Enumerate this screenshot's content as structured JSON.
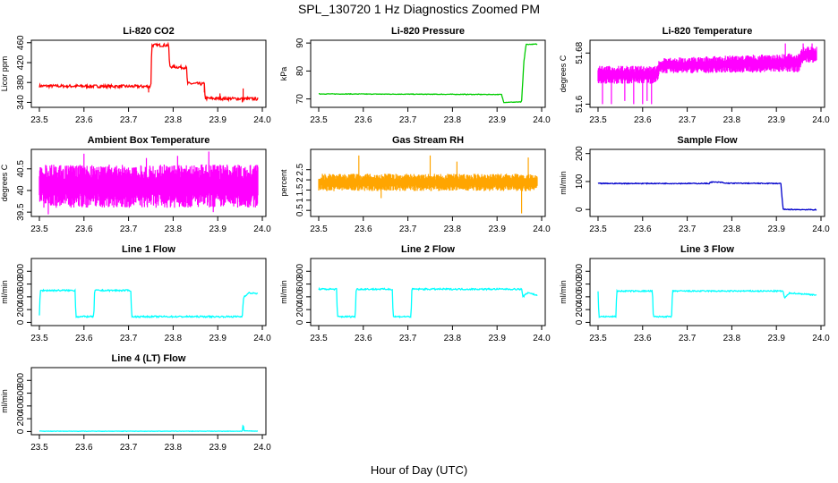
{
  "title": "SPL_130720  1 Hz Diagnostics Zoomed PM",
  "xlabel": "Hour of Day (UTC)",
  "chart_data": [
    {
      "type": "line",
      "title": "Li-820 CO2",
      "ylabel": "Licor ppm",
      "color": "#ff0000",
      "ylim": [
        330,
        465
      ],
      "yticks": [
        340,
        380,
        420,
        460
      ],
      "xlim": [
        23.49,
        24.0
      ],
      "xticks": [
        23.5,
        23.6,
        23.7,
        23.8,
        23.9,
        24.0
      ],
      "noise": 3,
      "points": [
        [
          23.5,
          373
        ],
        [
          23.75,
          372
        ],
        [
          23.752,
          455
        ],
        [
          23.79,
          455
        ],
        [
          23.792,
          412
        ],
        [
          23.83,
          410
        ],
        [
          23.832,
          378
        ],
        [
          23.87,
          377
        ],
        [
          23.872,
          348
        ],
        [
          23.99,
          347
        ]
      ],
      "spikes": [
        [
          23.745,
          360
        ],
        [
          23.87,
          360
        ],
        [
          23.905,
          358
        ],
        [
          23.955,
          340
        ],
        [
          23.957,
          368
        ]
      ]
    },
    {
      "type": "line",
      "title": "Li-820 Pressure",
      "ylabel": "kPa",
      "color": "#00cc00",
      "ylim": [
        67,
        91
      ],
      "yticks": [
        70,
        80,
        90
      ],
      "xlim": [
        23.49,
        24.0
      ],
      "xticks": [
        23.5,
        23.6,
        23.7,
        23.8,
        23.9,
        24.0
      ],
      "noise": 0.1,
      "points": [
        [
          23.5,
          71.8
        ],
        [
          23.91,
          71.6
        ],
        [
          23.915,
          68.8
        ],
        [
          23.955,
          68.9
        ],
        [
          23.96,
          83
        ],
        [
          23.965,
          89.5
        ],
        [
          23.99,
          89.6
        ]
      ],
      "spikes": []
    },
    {
      "type": "band",
      "title": "Li-820 Temperature",
      "ylabel": "degrees C",
      "color": "#ff00ff",
      "ylim": [
        51.595,
        51.7
      ],
      "yticks": [
        51.6,
        51.68
      ],
      "xlim": [
        23.49,
        24.0
      ],
      "xticks": [
        23.5,
        23.6,
        23.7,
        23.8,
        23.9,
        24.0
      ],
      "points": [
        [
          23.5,
          51.632,
          51.66
        ],
        [
          23.63,
          51.632,
          51.66
        ],
        [
          23.64,
          51.648,
          51.672
        ],
        [
          23.95,
          51.65,
          51.68
        ],
        [
          23.96,
          51.665,
          51.69
        ],
        [
          23.99,
          51.665,
          51.69
        ]
      ],
      "spikes": [
        [
          23.51,
          51.6
        ],
        [
          23.53,
          51.6
        ],
        [
          23.56,
          51.605
        ],
        [
          23.58,
          51.6
        ],
        [
          23.6,
          51.6
        ],
        [
          23.61,
          51.605
        ],
        [
          23.62,
          51.6
        ],
        [
          23.92,
          51.695
        ],
        [
          23.96,
          51.695
        ],
        [
          23.98,
          51.695
        ]
      ]
    },
    {
      "type": "band",
      "title": "Ambient Box Temperature",
      "ylabel": "degrees C",
      "color": "#ff00ff",
      "ylim": [
        39.4,
        40.95
      ],
      "yticks": [
        39.5,
        40.0,
        40.5
      ],
      "xlim": [
        23.49,
        24.0
      ],
      "xticks": [
        23.5,
        23.6,
        23.7,
        23.8,
        23.9,
        24.0
      ],
      "points": [
        [
          23.5,
          39.6,
          40.6
        ],
        [
          23.99,
          39.6,
          40.6
        ]
      ],
      "spikes": [
        [
          23.52,
          39.45
        ],
        [
          23.6,
          40.85
        ],
        [
          23.74,
          40.75
        ],
        [
          23.81,
          40.8
        ],
        [
          23.88,
          40.9
        ],
        [
          23.89,
          39.5
        ]
      ]
    },
    {
      "type": "band",
      "title": "Gas Stream RH",
      "ylabel": "percent",
      "color": "#ffa500",
      "ylim": [
        0.2,
        3.5
      ],
      "yticks": [
        0.5,
        1.0,
        1.5,
        2.0,
        2.5
      ],
      "xlim": [
        23.49,
        24.0
      ],
      "xticks": [
        23.5,
        23.6,
        23.7,
        23.8,
        23.9,
        24.0
      ],
      "points": [
        [
          23.5,
          1.45,
          2.3
        ],
        [
          23.99,
          1.45,
          2.3
        ]
      ],
      "spikes": [
        [
          23.59,
          3.2
        ],
        [
          23.75,
          3.2
        ],
        [
          23.81,
          2.9
        ],
        [
          23.955,
          0.35
        ],
        [
          23.97,
          3.1
        ],
        [
          23.64,
          1.1
        ]
      ]
    },
    {
      "type": "line",
      "title": "Sample Flow",
      "ylabel": "ml/min",
      "color": "#0000cc",
      "ylim": [
        -25,
        215
      ],
      "yticks": [
        0,
        100,
        200
      ],
      "xlim": [
        23.49,
        24.0
      ],
      "xticks": [
        23.5,
        23.6,
        23.7,
        23.8,
        23.9,
        24.0
      ],
      "noise": 1.5,
      "points": [
        [
          23.5,
          93
        ],
        [
          23.75,
          93
        ],
        [
          23.752,
          98
        ],
        [
          23.78,
          97
        ],
        [
          23.782,
          94
        ],
        [
          23.91,
          93
        ],
        [
          23.915,
          0
        ],
        [
          23.99,
          -1
        ]
      ],
      "spikes": []
    },
    {
      "type": "line",
      "title": "Line 1 Flow",
      "ylabel": "ml/min",
      "color": "#00ffff",
      "ylim": [
        -50,
        1000
      ],
      "yticks": [
        0,
        200,
        400,
        600,
        800
      ],
      "xlim": [
        23.49,
        24.0
      ],
      "xticks": [
        23.5,
        23.6,
        23.7,
        23.8,
        23.9,
        24.0
      ],
      "noise": 12,
      "points": [
        [
          23.5,
          100
        ],
        [
          23.502,
          500
        ],
        [
          23.58,
          500
        ],
        [
          23.582,
          90
        ],
        [
          23.622,
          90
        ],
        [
          23.624,
          500
        ],
        [
          23.705,
          500
        ],
        [
          23.707,
          90
        ],
        [
          23.955,
          90
        ],
        [
          23.958,
          400
        ],
        [
          23.97,
          460
        ],
        [
          23.99,
          450
        ]
      ],
      "spikes": []
    },
    {
      "type": "line",
      "title": "Line 2 Flow",
      "ylabel": "ml/min",
      "color": "#00ffff",
      "ylim": [
        -50,
        1000
      ],
      "yticks": [
        0,
        200,
        400,
        600,
        800
      ],
      "xlim": [
        23.49,
        24.0
      ],
      "xticks": [
        23.5,
        23.6,
        23.7,
        23.8,
        23.9,
        24.0
      ],
      "noise": 12,
      "points": [
        [
          23.5,
          520
        ],
        [
          23.54,
          520
        ],
        [
          23.542,
          90
        ],
        [
          23.582,
          90
        ],
        [
          23.584,
          520
        ],
        [
          23.665,
          520
        ],
        [
          23.667,
          90
        ],
        [
          23.707,
          90
        ],
        [
          23.709,
          520
        ],
        [
          23.955,
          520
        ],
        [
          23.958,
          400
        ],
        [
          23.97,
          470
        ],
        [
          23.99,
          420
        ]
      ],
      "spikes": []
    },
    {
      "type": "line",
      "title": "Line 3 Flow",
      "ylabel": "ml/min",
      "color": "#00ffff",
      "ylim": [
        -50,
        1000
      ],
      "yticks": [
        0,
        200,
        400,
        600,
        800
      ],
      "xlim": [
        23.49,
        24.0
      ],
      "xticks": [
        23.5,
        23.6,
        23.7,
        23.8,
        23.9,
        24.0
      ],
      "noise": 10,
      "points": [
        [
          23.5,
          480
        ],
        [
          23.502,
          90
        ],
        [
          23.54,
          90
        ],
        [
          23.542,
          490
        ],
        [
          23.622,
          490
        ],
        [
          23.624,
          90
        ],
        [
          23.665,
          90
        ],
        [
          23.667,
          490
        ],
        [
          23.915,
          490
        ],
        [
          23.918,
          380
        ],
        [
          23.93,
          460
        ],
        [
          23.99,
          430
        ]
      ],
      "spikes": []
    },
    {
      "type": "line",
      "title": "Line 4 (LT) Flow",
      "ylabel": "ml/min",
      "color": "#00ffff",
      "ylim": [
        -50,
        1000
      ],
      "yticks": [
        0,
        200,
        400,
        600,
        800
      ],
      "xlim": [
        23.49,
        24.0
      ],
      "xticks": [
        23.5,
        23.6,
        23.7,
        23.8,
        23.9,
        24.0
      ],
      "noise": 3,
      "points": [
        [
          23.5,
          5
        ],
        [
          23.955,
          5
        ],
        [
          23.957,
          120
        ],
        [
          23.959,
          10
        ],
        [
          23.99,
          5
        ]
      ],
      "spikes": []
    }
  ]
}
